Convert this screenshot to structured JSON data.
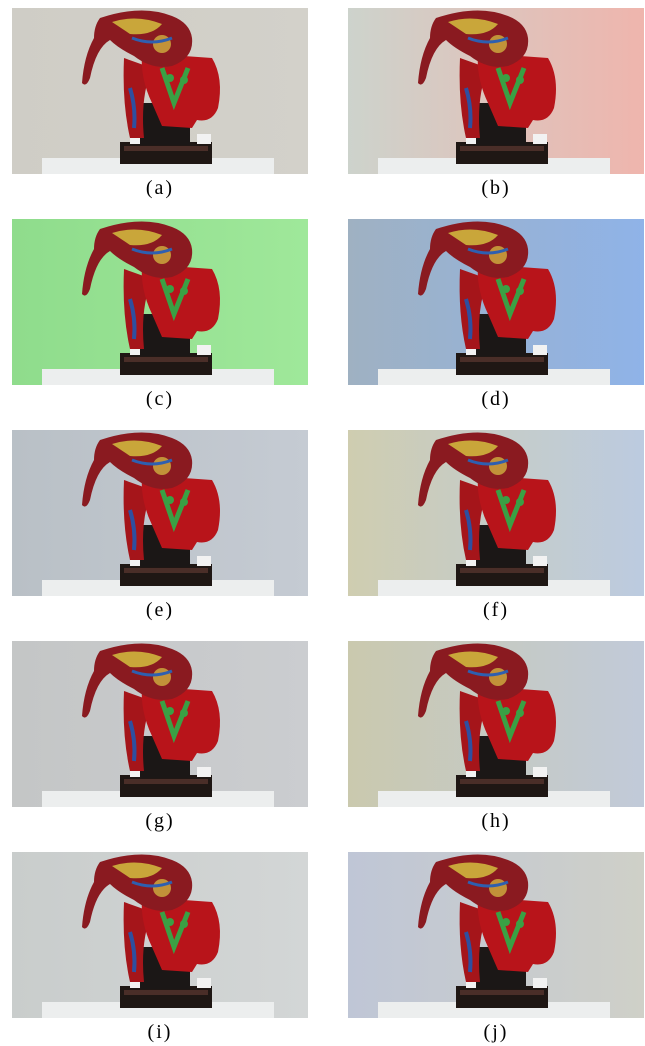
{
  "figure": {
    "panels": [
      {
        "label": "(a)"
      },
      {
        "label": "(b)"
      },
      {
        "label": "(c)"
      },
      {
        "label": "(d)"
      },
      {
        "label": "(e)"
      },
      {
        "label": "(f)"
      },
      {
        "label": "(g)"
      },
      {
        "label": "(h)"
      },
      {
        "label": "(i)"
      },
      {
        "label": "(j)"
      }
    ]
  }
}
